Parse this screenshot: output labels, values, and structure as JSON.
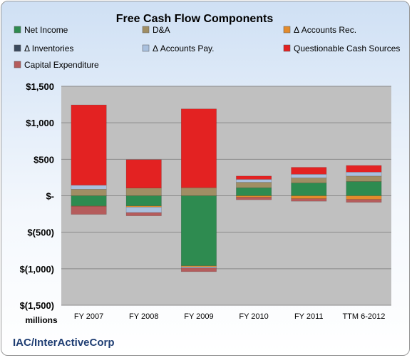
{
  "chart_data": {
    "type": "bar",
    "stacked": true,
    "title": "Free Cash Flow Components",
    "categories": [
      "FY 2007",
      "FY 2008",
      "FY 2009",
      "FY 2010",
      "FY 2011",
      "TTM 6-2012"
    ],
    "series": [
      {
        "name": "Net Income",
        "color": "#2e8b50",
        "values": [
          -140,
          -140,
          -960,
          110,
          175,
          195
        ]
      },
      {
        "name": "D&A",
        "color": "#a08e64",
        "values": [
          90,
          105,
          110,
          75,
          70,
          75
        ]
      },
      {
        "name": "Δ Accounts Rec.",
        "color": "#e38b2c",
        "values": [
          -5,
          -15,
          -15,
          -20,
          -40,
          -50
        ]
      },
      {
        "name": "Δ Inventories",
        "color": "#3b4a5e",
        "values": [
          0,
          0,
          0,
          0,
          0,
          0
        ]
      },
      {
        "name": "Δ Accounts Pay.",
        "color": "#a9c0de",
        "values": [
          55,
          -75,
          -15,
          40,
          50,
          55
        ]
      },
      {
        "name": "Questionable Cash Sources",
        "color": "#e32222",
        "values": [
          1100,
          390,
          1080,
          45,
          95,
          90
        ]
      },
      {
        "name": "Capital Expenditure",
        "color": "#b55c5c",
        "values": [
          -110,
          -45,
          -50,
          -35,
          -35,
          -40
        ]
      }
    ],
    "ylim": [
      -1500,
      1500
    ],
    "yticks": [
      {
        "value": 1500,
        "label": "$1,500"
      },
      {
        "value": 1000,
        "label": "$1,000"
      },
      {
        "value": 500,
        "label": "$500"
      },
      {
        "value": 0,
        "label": "$-"
      },
      {
        "value": -500,
        "label": "$(500)"
      },
      {
        "value": -1000,
        "label": "$(1,000)"
      },
      {
        "value": -1500,
        "label": "$(1,500)"
      }
    ],
    "units_label": "millions",
    "grid": true,
    "legend": "top"
  },
  "footer": "IAC/InterActiveCorp"
}
